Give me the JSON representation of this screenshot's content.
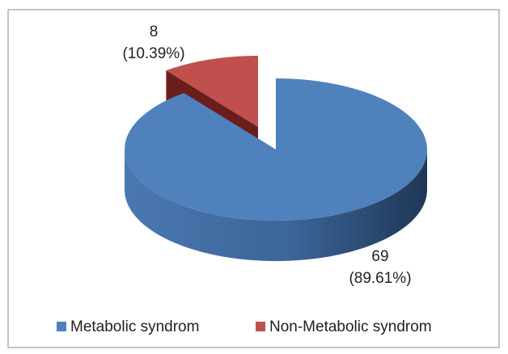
{
  "chart_data": {
    "type": "pie3d",
    "categories": [
      "Metabolic syndrom",
      "Non-Metabolic syndrom"
    ],
    "values": [
      69,
      8
    ],
    "percentages": [
      89.61,
      10.39
    ],
    "percentage_labels": [
      "(89.61%)",
      "(10.39%)"
    ],
    "colors": [
      "#4f81bd",
      "#c0504d"
    ],
    "legend": "bottom"
  }
}
